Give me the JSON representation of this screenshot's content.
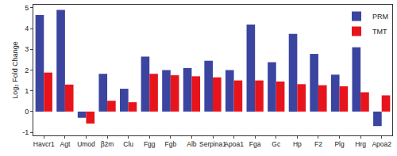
{
  "chart_data": {
    "type": "bar",
    "y_label": "Log₂ Fold Change",
    "categories": [
      "Havcr1",
      "Agt",
      "Umod",
      "β2m",
      "Clu",
      "Fgg",
      "Fgb",
      "Alb",
      "Serpina1",
      "Apoa1",
      "Fga",
      "Gc",
      "Hp",
      "F2",
      "Plg",
      "Hrg",
      "Apoa2"
    ],
    "series": [
      {
        "name": "PRM",
        "color": "#3b45a0",
        "values": [
          4.65,
          4.9,
          -0.3,
          1.82,
          1.1,
          2.65,
          2.0,
          2.1,
          2.45,
          2.0,
          4.2,
          2.38,
          3.75,
          2.78,
          1.78,
          3.1,
          -0.7
        ]
      },
      {
        "name": "TMT",
        "color": "#e8141c",
        "values": [
          1.88,
          1.3,
          -0.58,
          0.52,
          0.45,
          1.82,
          1.75,
          1.7,
          1.65,
          1.5,
          1.5,
          1.45,
          1.32,
          1.27,
          1.22,
          0.93,
          0.78
        ]
      }
    ],
    "ylim": [
      -1.15,
      5.15
    ],
    "yticks": [
      -1,
      0,
      1,
      2,
      3,
      4,
      5
    ],
    "grid": false,
    "legend": "top-right"
  }
}
